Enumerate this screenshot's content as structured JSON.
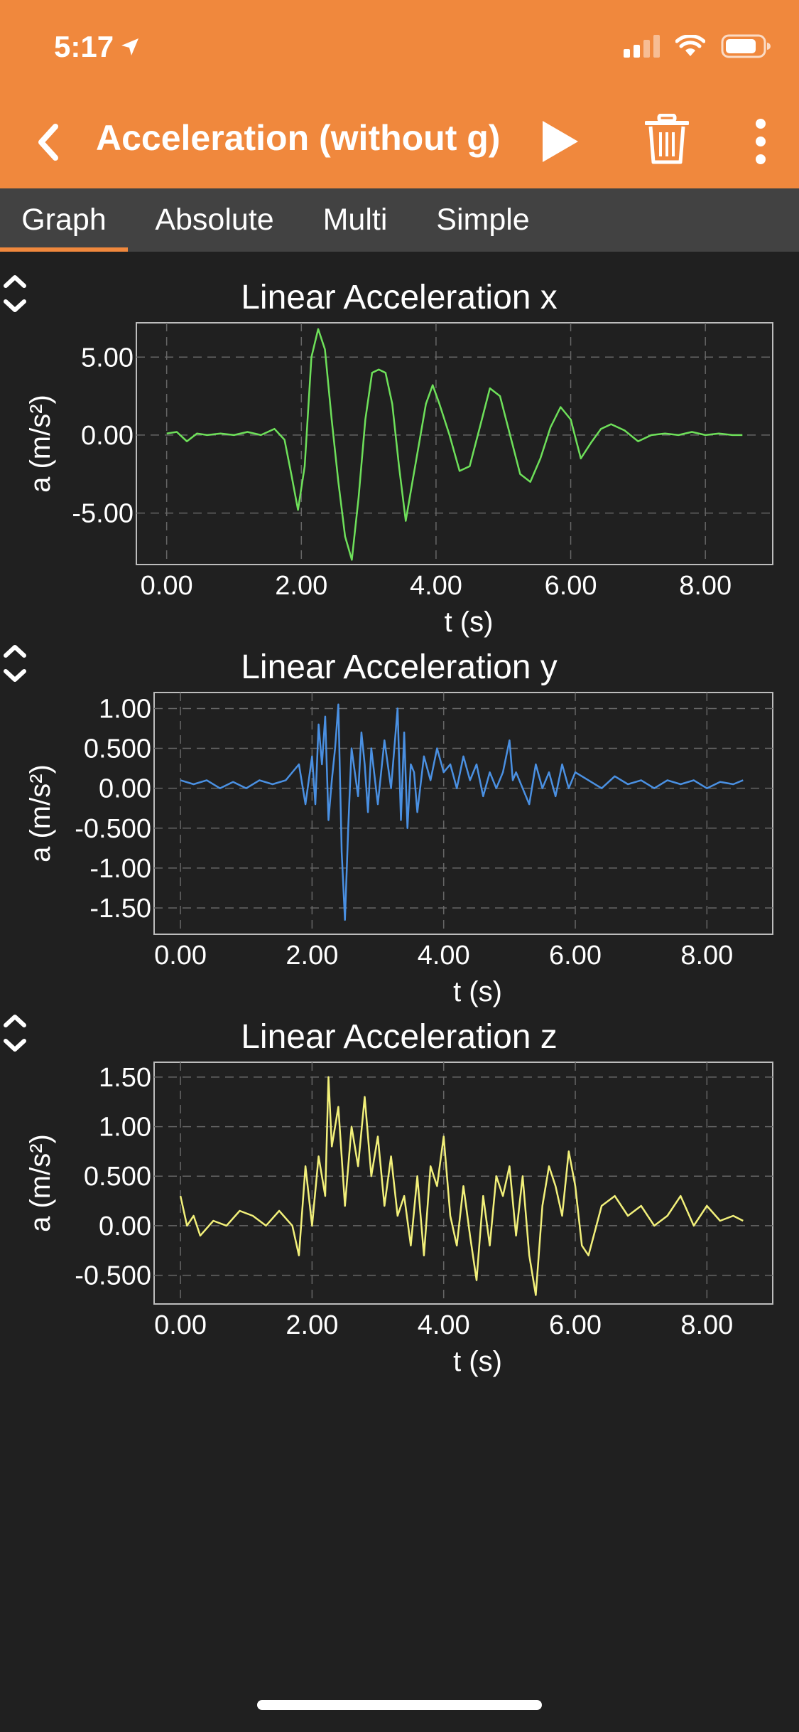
{
  "status_bar": {
    "time": "5:17"
  },
  "toolbar": {
    "title": "Acceleration (without g)",
    "icons": [
      "back-chevron-icon",
      "play-icon",
      "trash-icon",
      "more-vert-icon"
    ]
  },
  "tabs": [
    {
      "label": "Graph",
      "active": true
    },
    {
      "label": "Absolute",
      "active": false
    },
    {
      "label": "Multi",
      "active": false
    },
    {
      "label": "Simple",
      "active": false
    }
  ],
  "theme": {
    "accent": "#F0883D",
    "background": "#202020",
    "tabbar": "#424242"
  },
  "chart_data": [
    {
      "type": "line",
      "title": "Linear Acceleration x",
      "xlabel": "t (s)",
      "ylabel": "a (m/s²)",
      "xlim": [
        -0.45,
        9.0
      ],
      "ylim": [
        -8.3,
        7.2
      ],
      "xticks": [
        0,
        2,
        4,
        6,
        8
      ],
      "xtick_labels": [
        "0.00",
        "2.00",
        "4.00",
        "6.00",
        "8.00"
      ],
      "yticks": [
        5,
        0,
        -5
      ],
      "ytick_labels": [
        "5.00",
        "0.00",
        "-5.00"
      ],
      "grid": true,
      "color": "#6EE05A",
      "series": [
        {
          "x": [
            0,
            0.15,
            0.3,
            0.45,
            0.6,
            0.8,
            1.0,
            1.2,
            1.4,
            1.6,
            1.75,
            1.85,
            1.95,
            2.05,
            2.15,
            2.25,
            2.35,
            2.45,
            2.55,
            2.65,
            2.75,
            2.85,
            2.95,
            3.05,
            3.15,
            3.25,
            3.35,
            3.45,
            3.55,
            3.65,
            3.75,
            3.85,
            3.95,
            4.05,
            4.2,
            4.35,
            4.5,
            4.65,
            4.8,
            4.95,
            5.1,
            5.25,
            5.4,
            5.55,
            5.7,
            5.85,
            6.0,
            6.15,
            6.3,
            6.45,
            6.6,
            6.8,
            7.0,
            7.2,
            7.4,
            7.6,
            7.8,
            8.0,
            8.2,
            8.4,
            8.55
          ],
          "y": [
            0.1,
            0.2,
            -0.4,
            0.1,
            0.0,
            0.1,
            0.0,
            0.2,
            0.0,
            0.4,
            -0.3,
            -2.5,
            -4.8,
            -2.0,
            5.0,
            6.8,
            5.5,
            1.0,
            -3.0,
            -6.5,
            -8.0,
            -4.0,
            1.0,
            4.0,
            4.2,
            4.0,
            2.0,
            -2.0,
            -5.5,
            -3.0,
            -0.5,
            2.0,
            3.2,
            2.0,
            0.0,
            -2.3,
            -2.0,
            0.5,
            3.0,
            2.5,
            0.0,
            -2.5,
            -3.0,
            -1.5,
            0.5,
            1.8,
            1.0,
            -1.5,
            -0.5,
            0.4,
            0.7,
            0.3,
            -0.4,
            0.0,
            0.1,
            0.0,
            0.2,
            0.0,
            0.1,
            0.0,
            0.0
          ]
        }
      ]
    },
    {
      "type": "line",
      "title": "Linear Acceleration y",
      "xlabel": "t (s)",
      "ylabel": "a (m/s²)",
      "xlim": [
        -0.4,
        9.0
      ],
      "ylim": [
        -1.83,
        1.2
      ],
      "xticks": [
        0,
        2,
        4,
        6,
        8
      ],
      "xtick_labels": [
        "0.00",
        "2.00",
        "4.00",
        "6.00",
        "8.00"
      ],
      "yticks": [
        1.0,
        0.5,
        0.0,
        -0.5,
        -1.0,
        -1.5
      ],
      "ytick_labels": [
        "1.00",
        "0.500",
        "0.00",
        "-0.500",
        "-1.00",
        "-1.50"
      ],
      "grid": true,
      "color": "#4A90E2",
      "series": [
        {
          "x": [
            0,
            0.2,
            0.4,
            0.6,
            0.8,
            1.0,
            1.2,
            1.4,
            1.6,
            1.8,
            1.9,
            2.0,
            2.05,
            2.1,
            2.15,
            2.2,
            2.25,
            2.3,
            2.35,
            2.4,
            2.45,
            2.5,
            2.55,
            2.6,
            2.65,
            2.7,
            2.75,
            2.8,
            2.85,
            2.9,
            3.0,
            3.1,
            3.2,
            3.3,
            3.35,
            3.4,
            3.45,
            3.5,
            3.55,
            3.6,
            3.7,
            3.8,
            3.9,
            4.0,
            4.1,
            4.2,
            4.3,
            4.4,
            4.5,
            4.6,
            4.7,
            4.8,
            4.9,
            5.0,
            5.05,
            5.1,
            5.2,
            5.3,
            5.4,
            5.5,
            5.6,
            5.7,
            5.8,
            5.9,
            6.0,
            6.2,
            6.4,
            6.6,
            6.8,
            7.0,
            7.2,
            7.4,
            7.6,
            7.8,
            8.0,
            8.2,
            8.4,
            8.55
          ],
          "y": [
            0.1,
            0.05,
            0.1,
            0.0,
            0.08,
            0.0,
            0.1,
            0.05,
            0.1,
            0.3,
            -0.2,
            0.4,
            -0.2,
            0.8,
            0.3,
            0.9,
            -0.4,
            0.1,
            0.5,
            1.05,
            -0.8,
            -1.65,
            -0.5,
            0.5,
            0.2,
            -0.1,
            0.7,
            0.3,
            -0.3,
            0.5,
            -0.2,
            0.6,
            0.0,
            1.0,
            -0.4,
            0.7,
            -0.5,
            0.3,
            0.2,
            -0.3,
            0.4,
            0.1,
            0.5,
            0.2,
            0.3,
            0.0,
            0.4,
            0.1,
            0.3,
            -0.1,
            0.2,
            0.0,
            0.2,
            0.6,
            0.1,
            0.2,
            0.0,
            -0.2,
            0.3,
            0.0,
            0.2,
            -0.1,
            0.3,
            0.0,
            0.2,
            0.1,
            0.0,
            0.15,
            0.05,
            0.1,
            0.0,
            0.1,
            0.05,
            0.1,
            0.0,
            0.08,
            0.05,
            0.1
          ]
        }
      ]
    },
    {
      "type": "line",
      "title": "Linear Acceleration z",
      "xlabel": "t (s)",
      "ylabel": "a (m/s²)",
      "xlim": [
        -0.4,
        9.0
      ],
      "ylim": [
        -0.79,
        1.65
      ],
      "xticks": [
        0,
        2,
        4,
        6,
        8
      ],
      "xtick_labels": [
        "0.00",
        "2.00",
        "4.00",
        "6.00",
        "8.00"
      ],
      "yticks": [
        1.5,
        1.0,
        0.5,
        0.0,
        -0.5
      ],
      "ytick_labels": [
        "1.50",
        "1.00",
        "0.500",
        "0.00",
        "-0.500"
      ],
      "grid": true,
      "color": "#F2F07A",
      "series": [
        {
          "x": [
            0,
            0.1,
            0.2,
            0.3,
            0.5,
            0.7,
            0.9,
            1.1,
            1.3,
            1.5,
            1.7,
            1.8,
            1.9,
            2.0,
            2.1,
            2.2,
            2.25,
            2.3,
            2.4,
            2.5,
            2.6,
            2.7,
            2.8,
            2.9,
            3.0,
            3.1,
            3.2,
            3.3,
            3.4,
            3.5,
            3.6,
            3.7,
            3.8,
            3.9,
            4.0,
            4.1,
            4.2,
            4.3,
            4.4,
            4.5,
            4.6,
            4.7,
            4.8,
            4.9,
            5.0,
            5.1,
            5.2,
            5.3,
            5.4,
            5.5,
            5.6,
            5.7,
            5.8,
            5.9,
            6.0,
            6.1,
            6.2,
            6.4,
            6.6,
            6.8,
            7.0,
            7.2,
            7.4,
            7.6,
            7.8,
            8.0,
            8.2,
            8.4,
            8.55
          ],
          "y": [
            0.3,
            0.0,
            0.1,
            -0.1,
            0.05,
            0.0,
            0.15,
            0.1,
            0.0,
            0.15,
            0.0,
            -0.3,
            0.6,
            0.0,
            0.7,
            0.3,
            1.5,
            0.8,
            1.2,
            0.2,
            1.0,
            0.6,
            1.3,
            0.5,
            0.9,
            0.2,
            0.7,
            0.1,
            0.3,
            -0.2,
            0.5,
            -0.3,
            0.6,
            0.4,
            0.9,
            0.1,
            -0.2,
            0.4,
            -0.1,
            -0.55,
            0.3,
            -0.2,
            0.5,
            0.3,
            0.6,
            -0.1,
            0.5,
            -0.3,
            -0.7,
            0.2,
            0.6,
            0.4,
            0.1,
            0.75,
            0.4,
            -0.2,
            -0.3,
            0.2,
            0.3,
            0.1,
            0.2,
            0.0,
            0.1,
            0.3,
            0.0,
            0.2,
            0.05,
            0.1,
            0.05
          ]
        }
      ]
    }
  ]
}
